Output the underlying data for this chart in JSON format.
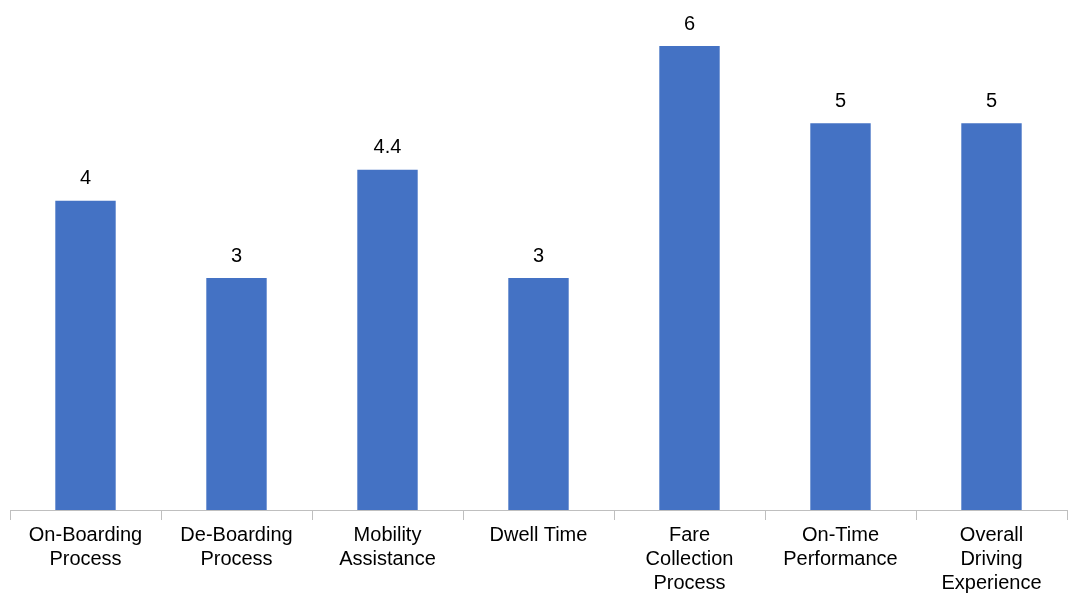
{
  "chart_data": {
    "type": "bar",
    "categories": [
      "On-Boarding Process",
      "De-Boarding Process",
      "Mobility Assistance",
      "Dwell Time",
      "Fare Collection Process",
      "On-Time Performance",
      "Overall Driving Experience"
    ],
    "values": [
      4,
      3,
      4.4,
      3,
      6,
      5,
      5
    ],
    "color": "#4472c4",
    "data_labels": true,
    "grid": false,
    "legend": false
  }
}
